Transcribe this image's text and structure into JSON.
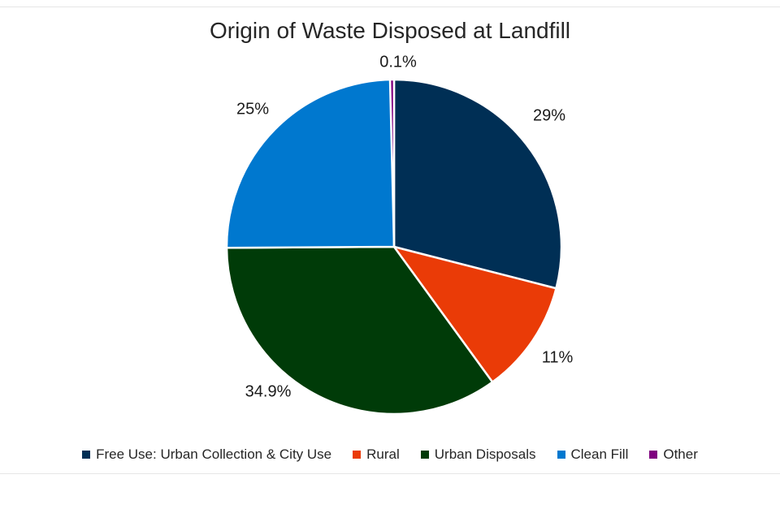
{
  "chart_data": {
    "type": "pie",
    "title": "Origin of Waste Disposed at Landfill",
    "slices": [
      {
        "name": "Free Use: Urban Collection & City Use",
        "value": 29,
        "label": "29%",
        "color": "#002f55"
      },
      {
        "name": "Rural",
        "value": 11,
        "label": "11%",
        "color": "#ea3b07"
      },
      {
        "name": "Urban Disposals",
        "value": 34.9,
        "label": "34.9%",
        "color": "#003b08"
      },
      {
        "name": "Clean Fill",
        "value": 25,
        "label": "25%",
        "color": "#0078cf"
      },
      {
        "name": "Other",
        "value": 0.1,
        "label": "0.1%",
        "color": "#800080"
      }
    ],
    "legend_position": "bottom"
  }
}
